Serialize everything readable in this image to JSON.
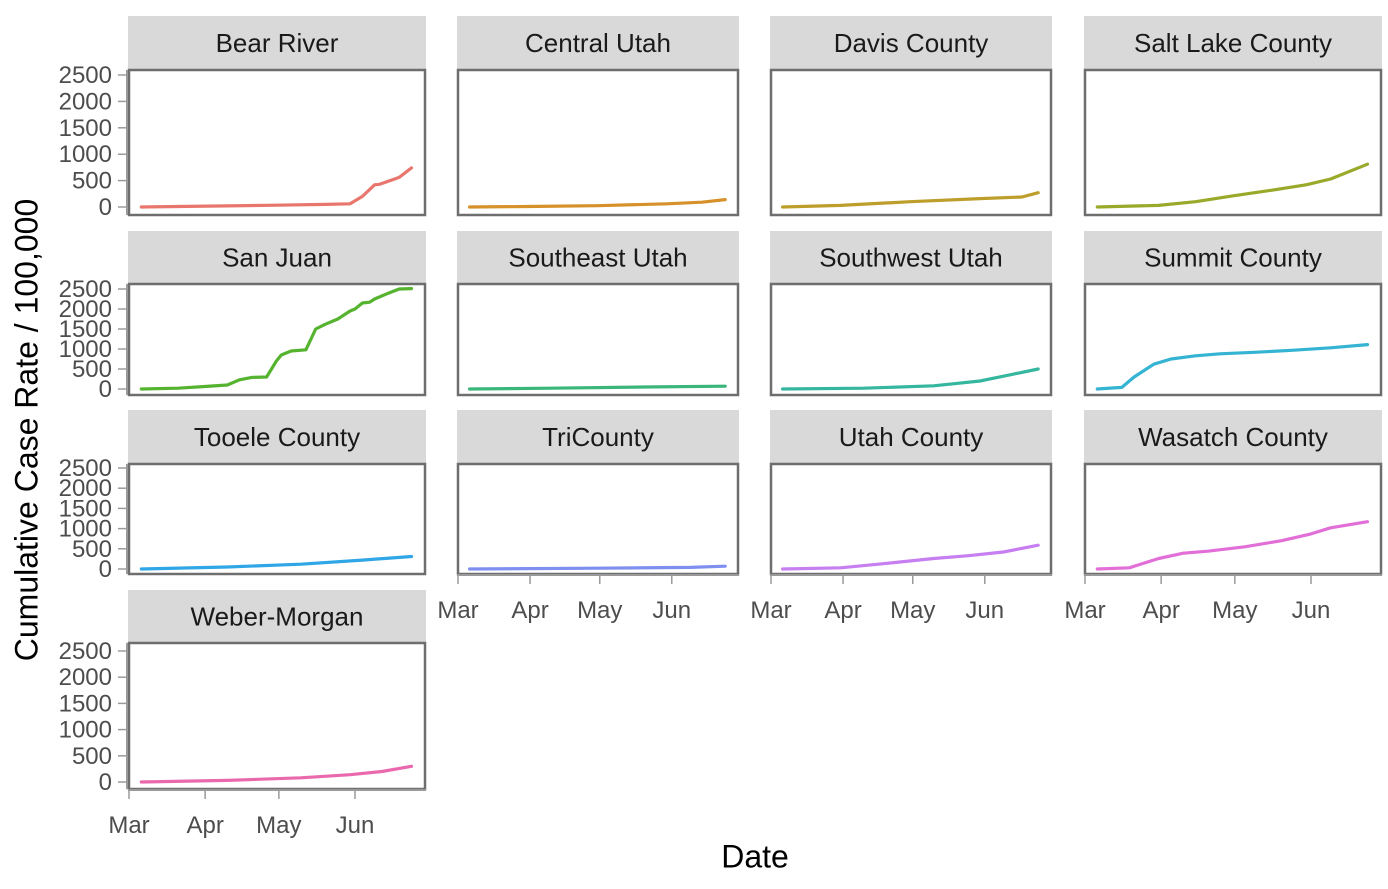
{
  "chart_data": {
    "type": "line",
    "title": "",
    "xlabel": "Date",
    "ylabel": "Cumulative Case Rate / 100,000",
    "ylim": [
      0,
      2500
    ],
    "y_ticks": [
      "0",
      "500",
      "1000",
      "1500",
      "2000",
      "2500"
    ],
    "y_tick_values": [
      0,
      500,
      1000,
      1500,
      2000,
      2500
    ],
    "x_ticks": [
      "Mar",
      "Apr",
      "May",
      "Jun"
    ],
    "x_tick_days": [
      0,
      31,
      61,
      92
    ],
    "x_unit": "days since Mar 1",
    "facet_layout": {
      "columns": 4,
      "rows": 4
    },
    "grid": false,
    "legend": "none",
    "strip_color": "#d9d9d9",
    "series": [
      {
        "name": "Bear River",
        "color": "#e8766d",
        "x": [
          5,
          20,
          40,
          60,
          80,
          90,
          95,
          100,
          102,
          110,
          115
        ],
        "y": [
          0,
          10,
          20,
          35,
          50,
          60,
          200,
          420,
          430,
          560,
          740
        ]
      },
      {
        "name": "Central Utah",
        "color": "#d6912a",
        "x": [
          5,
          30,
          60,
          90,
          105,
          115
        ],
        "y": [
          0,
          10,
          25,
          60,
          90,
          140
        ]
      },
      {
        "name": "Davis County",
        "color": "#bd9e2a",
        "x": [
          5,
          30,
          60,
          90,
          108,
          115
        ],
        "y": [
          0,
          30,
          100,
          160,
          190,
          270
        ]
      },
      {
        "name": "Salt Lake County",
        "color": "#9aa92a",
        "x": [
          5,
          30,
          45,
          60,
          75,
          90,
          100,
          115
        ],
        "y": [
          0,
          30,
          100,
          210,
          310,
          420,
          530,
          810
        ]
      },
      {
        "name": "San Juan",
        "color": "#55b32f",
        "x": [
          5,
          20,
          30,
          40,
          45,
          50,
          56,
          60,
          62,
          66,
          72,
          76,
          80,
          85,
          90,
          92,
          95,
          98,
          100,
          105,
          110,
          115
        ],
        "y": [
          0,
          20,
          60,
          100,
          230,
          290,
          300,
          700,
          850,
          950,
          980,
          1500,
          1620,
          1750,
          1950,
          2000,
          2150,
          2170,
          2250,
          2380,
          2500,
          2510
        ]
      },
      {
        "name": "Southeast Utah",
        "color": "#3ab67a",
        "x": [
          5,
          40,
          80,
          115
        ],
        "y": [
          0,
          20,
          50,
          70
        ]
      },
      {
        "name": "Southwest Utah",
        "color": "#35b69e",
        "x": [
          5,
          40,
          70,
          90,
          100,
          115
        ],
        "y": [
          0,
          20,
          80,
          200,
          320,
          500
        ]
      },
      {
        "name": "Summit County",
        "color": "#35b3d3",
        "x": [
          5,
          15,
          20,
          28,
          35,
          45,
          55,
          70,
          85,
          100,
          115
        ],
        "y": [
          0,
          40,
          300,
          620,
          750,
          830,
          880,
          920,
          970,
          1030,
          1110
        ]
      },
      {
        "name": "Tooele County",
        "color": "#2fa6e6",
        "x": [
          5,
          40,
          70,
          95,
          115
        ],
        "y": [
          0,
          50,
          120,
          220,
          310
        ]
      },
      {
        "name": "TriCounty",
        "color": "#7e8ff0",
        "x": [
          5,
          60,
          100,
          115
        ],
        "y": [
          0,
          20,
          40,
          70
        ]
      },
      {
        "name": "Utah County",
        "color": "#c77ef0",
        "x": [
          5,
          30,
          50,
          70,
          85,
          100,
          115
        ],
        "y": [
          0,
          30,
          140,
          260,
          330,
          420,
          590
        ]
      },
      {
        "name": "Wasatch County",
        "color": "#e26fd8",
        "x": [
          5,
          18,
          30,
          40,
          50,
          65,
          80,
          92,
          100,
          115
        ],
        "y": [
          0,
          30,
          260,
          390,
          440,
          550,
          700,
          870,
          1020,
          1170
        ]
      },
      {
        "name": "Weber-Morgan",
        "color": "#ea69ad",
        "x": [
          5,
          40,
          70,
          90,
          103,
          115
        ],
        "y": [
          0,
          30,
          80,
          140,
          200,
          300
        ]
      }
    ]
  }
}
